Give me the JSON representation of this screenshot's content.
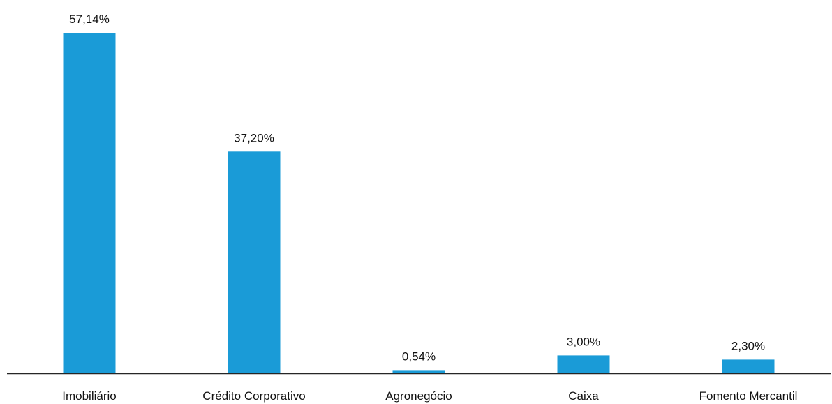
{
  "chart_data": {
    "type": "bar",
    "categories": [
      "Imobiliário",
      "Crédito Corporativo",
      "Agronegócio",
      "Caixa",
      "Fomento Mercantil"
    ],
    "values": [
      57.14,
      37.2,
      0.54,
      3.0,
      2.3
    ],
    "value_labels": [
      "57,14%",
      "37,20%",
      "0,54%",
      "3,00%",
      "2,30%"
    ],
    "bar_color": "#1a9bd7",
    "axis_color": "#262626",
    "ylim": [
      0,
      57.14
    ],
    "grid": false,
    "legend": "none"
  }
}
